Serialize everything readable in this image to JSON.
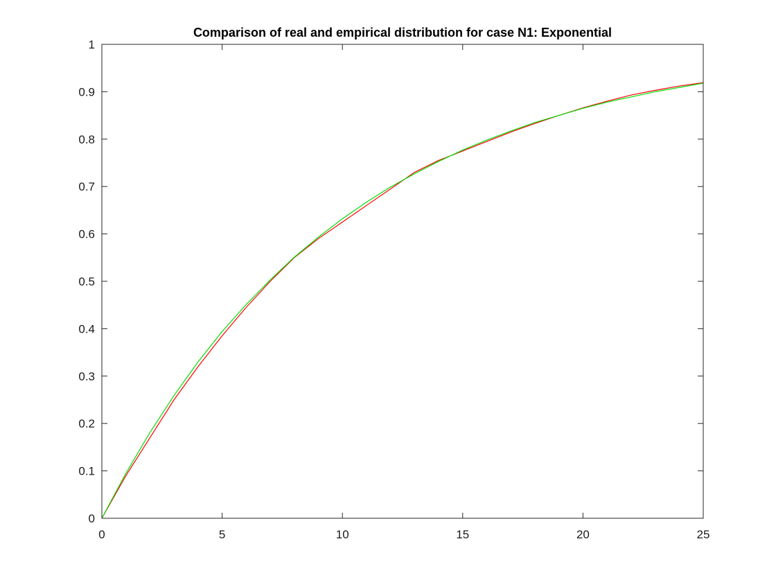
{
  "chart_data": {
    "type": "line",
    "title": "Comparison of real and empirical distribution for case N1: Exponential",
    "xlabel": "",
    "ylabel": "",
    "xlim": [
      0,
      25
    ],
    "ylim": [
      0,
      1
    ],
    "xticks": [
      0,
      5,
      10,
      15,
      20,
      25
    ],
    "yticks": [
      0,
      0.1,
      0.2,
      0.3,
      0.4,
      0.5,
      0.6,
      0.7,
      0.8,
      0.9,
      1
    ],
    "xtick_labels": [
      "0",
      "5",
      "10",
      "15",
      "20",
      "25"
    ],
    "ytick_labels": [
      "0",
      "0.1",
      "0.2",
      "0.3",
      "0.4",
      "0.5",
      "0.6",
      "0.7",
      "0.8",
      "0.9",
      "1"
    ],
    "grid": false,
    "legend": "none",
    "series": [
      {
        "color": "#ff0000",
        "x": [
          0,
          1,
          2,
          3,
          4,
          5,
          6,
          7,
          8,
          9,
          10,
          11,
          12,
          13,
          14,
          15,
          16,
          17,
          18,
          19,
          20,
          21,
          22,
          23,
          24,
          25
        ],
        "y": [
          0,
          0.09,
          0.17,
          0.25,
          0.32,
          0.385,
          0.445,
          0.5,
          0.55,
          0.59,
          0.625,
          0.66,
          0.695,
          0.73,
          0.755,
          0.775,
          0.795,
          0.815,
          0.833,
          0.85,
          0.866,
          0.88,
          0.893,
          0.903,
          0.912,
          0.919
        ]
      },
      {
        "color": "#00dd00",
        "x": [
          0,
          1,
          2,
          3,
          4,
          5,
          6,
          7,
          8,
          9,
          10,
          11,
          12,
          13,
          14,
          15,
          16,
          17,
          18,
          19,
          20,
          21,
          22,
          23,
          24,
          25
        ],
        "y": [
          0,
          0.095,
          0.181,
          0.259,
          0.33,
          0.394,
          0.451,
          0.503,
          0.551,
          0.593,
          0.632,
          0.667,
          0.699,
          0.727,
          0.753,
          0.777,
          0.798,
          0.817,
          0.835,
          0.85,
          0.865,
          0.878,
          0.889,
          0.9,
          0.909,
          0.918
        ]
      }
    ]
  },
  "colors": {
    "axis": "#262626",
    "background": "#ffffff"
  }
}
